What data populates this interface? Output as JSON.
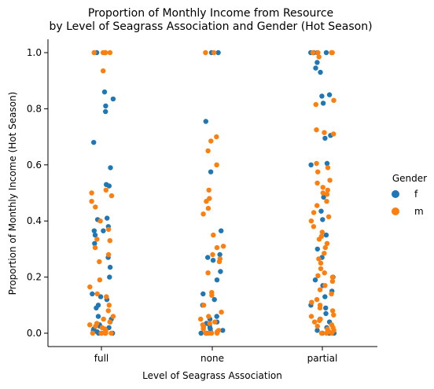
{
  "chart_data": {
    "type": "scatter",
    "subtype": "strip",
    "title_lines": [
      "Proportion of Monthly Income from Resource",
      "by Level of Seagrass Association and Gender (Hot Season)"
    ],
    "xlabel": "Level of Seagrass Association",
    "ylabel": "Proportion of Monthly Income (Hot Season)",
    "categories": [
      "full",
      "none",
      "partial"
    ],
    "ylim": [
      -0.05,
      1.05
    ],
    "yticks": [
      "0.0",
      "0.2",
      "0.4",
      "0.6",
      "0.8",
      "1.0"
    ],
    "grid": false,
    "legend": {
      "title": "Gender",
      "placement": "right"
    },
    "series": [
      {
        "name": "f",
        "color": "#1f77b4",
        "values": {
          "full": [
            1.0,
            1.0,
            0.86,
            0.835,
            0.81,
            0.79,
            0.68,
            0.59,
            0.53,
            0.525,
            0.41,
            0.405,
            0.38,
            0.365,
            0.365,
            0.35,
            0.32,
            0.27,
            0.235,
            0.2,
            0.14,
            0.13,
            0.12,
            0.1,
            0.09,
            0.06,
            0.05,
            0.04,
            0.03,
            0.025,
            0.02,
            0.015,
            0.01,
            0.005,
            0.0,
            0.0,
            0.0
          ],
          "none": [
            1.0,
            1.0,
            0.755,
            0.575,
            0.365,
            0.28,
            0.27,
            0.26,
            0.22,
            0.19,
            0.14,
            0.12,
            0.1,
            0.06,
            0.05,
            0.04,
            0.035,
            0.03,
            0.02,
            0.015,
            0.01,
            0.005,
            0.0,
            0.0
          ],
          "partial": [
            1.0,
            1.0,
            1.0,
            1.0,
            0.965,
            0.93,
            0.945,
            0.85,
            0.845,
            0.82,
            0.705,
            0.695,
            0.605,
            0.6,
            0.485,
            0.435,
            0.405,
            0.35,
            0.3,
            0.27,
            0.2,
            0.19,
            0.17,
            0.15,
            0.13,
            0.1,
            0.09,
            0.07,
            0.05,
            0.04,
            0.02,
            0.01,
            0.0,
            0.0,
            0.0
          ]
        }
      },
      {
        "name": "m",
        "color": "#ff7f0e",
        "values": {
          "full": [
            1.0,
            1.0,
            1.0,
            1.0,
            0.935,
            0.51,
            0.5,
            0.49,
            0.47,
            0.45,
            0.4,
            0.37,
            0.335,
            0.33,
            0.305,
            0.28,
            0.255,
            0.19,
            0.165,
            0.14,
            0.13,
            0.1,
            0.08,
            0.06,
            0.05,
            0.04,
            0.035,
            0.03,
            0.025,
            0.02,
            0.015,
            0.01,
            0.005,
            0.0,
            0.0,
            0.0,
            0.0,
            0.0
          ],
          "none": [
            1.0,
            1.0,
            0.7,
            0.685,
            0.65,
            0.6,
            0.51,
            0.48,
            0.47,
            0.445,
            0.425,
            0.35,
            0.31,
            0.305,
            0.28,
            0.265,
            0.255,
            0.215,
            0.145,
            0.135,
            0.1,
            0.075,
            0.06,
            0.05,
            0.04,
            0.035,
            0.03,
            0.025,
            0.02,
            0.015,
            0.01,
            0.005,
            0.0,
            0.0,
            0.0,
            0.0
          ],
          "partial": [
            1.0,
            1.0,
            1.0,
            1.0,
            0.985,
            0.83,
            0.815,
            0.725,
            0.715,
            0.71,
            0.605,
            0.59,
            0.575,
            0.545,
            0.535,
            0.52,
            0.51,
            0.5,
            0.495,
            0.47,
            0.455,
            0.43,
            0.415,
            0.4,
            0.38,
            0.36,
            0.345,
            0.335,
            0.32,
            0.305,
            0.285,
            0.265,
            0.25,
            0.23,
            0.215,
            0.205,
            0.2,
            0.185,
            0.17,
            0.155,
            0.14,
            0.12,
            0.11,
            0.1,
            0.09,
            0.08,
            0.065,
            0.06,
            0.05,
            0.045,
            0.04,
            0.03,
            0.025,
            0.02,
            0.015,
            0.01,
            0.005,
            0.0,
            0.0,
            0.0
          ]
        }
      }
    ]
  }
}
